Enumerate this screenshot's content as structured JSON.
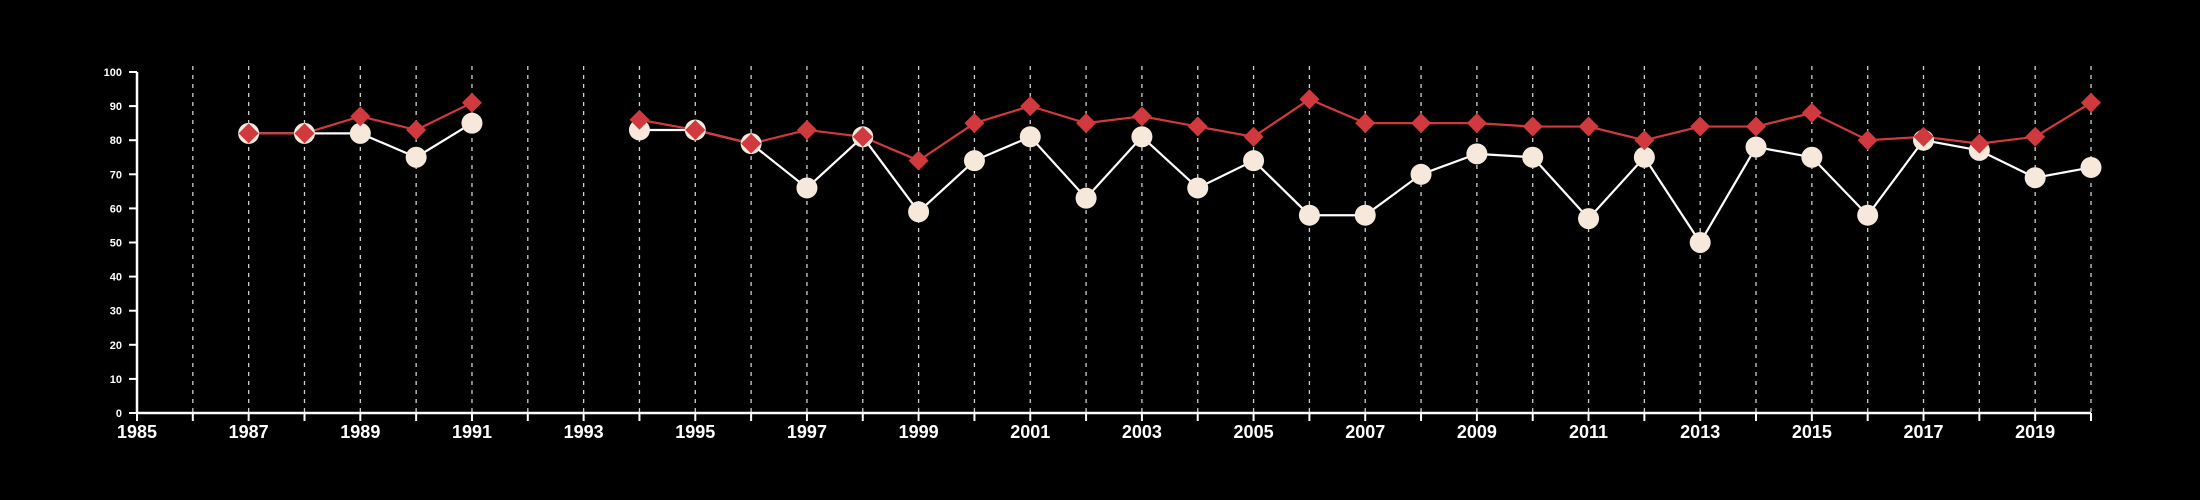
{
  "chart_data": {
    "type": "line",
    "title": "",
    "xlabel": "",
    "ylabel": "",
    "xlim": [
      1985,
      2020
    ],
    "ylim": [
      0,
      100
    ],
    "x_ticks": [
      1985,
      1987,
      1989,
      1991,
      1993,
      1995,
      1997,
      1999,
      2001,
      2003,
      2005,
      2007,
      2009,
      2011,
      2013,
      2015,
      2017,
      2019
    ],
    "y_ticks": [
      0,
      10,
      20,
      30,
      40,
      50,
      60,
      70,
      80,
      90,
      100
    ],
    "x_gridlines": "dashed vertical line every year",
    "legend": "none",
    "series": [
      {
        "marker": "diamond",
        "color": "#d03a3e",
        "points": [
          [
            1987,
            82
          ],
          [
            1988,
            82
          ],
          [
            1989,
            87
          ],
          [
            1990,
            83
          ],
          [
            1991,
            91
          ],
          [
            1994,
            86
          ],
          [
            1995,
            83
          ],
          [
            1996,
            79
          ],
          [
            1997,
            83
          ],
          [
            1998,
            81
          ],
          [
            1999,
            74
          ],
          [
            2000,
            85
          ],
          [
            2001,
            90
          ],
          [
            2002,
            85
          ],
          [
            2003,
            87
          ],
          [
            2004,
            84
          ],
          [
            2005,
            81
          ],
          [
            2006,
            92
          ],
          [
            2007,
            85
          ],
          [
            2008,
            85
          ],
          [
            2009,
            85
          ],
          [
            2010,
            84
          ],
          [
            2011,
            84
          ],
          [
            2012,
            80
          ],
          [
            2013,
            84
          ],
          [
            2014,
            84
          ],
          [
            2015,
            88
          ],
          [
            2016,
            80
          ],
          [
            2017,
            81
          ],
          [
            2018,
            79
          ],
          [
            2019,
            81
          ],
          [
            2020,
            91
          ]
        ]
      },
      {
        "marker": "circle",
        "color": "#f6e9dc",
        "points": [
          [
            1987,
            82
          ],
          [
            1988,
            82
          ],
          [
            1989,
            82
          ],
          [
            1990,
            75
          ],
          [
            1991,
            85
          ],
          [
            1994,
            83
          ],
          [
            1995,
            83
          ],
          [
            1996,
            79
          ],
          [
            1997,
            66
          ],
          [
            1998,
            81
          ],
          [
            1999,
            59
          ],
          [
            2000,
            74
          ],
          [
            2001,
            81
          ],
          [
            2002,
            63
          ],
          [
            2003,
            81
          ],
          [
            2004,
            66
          ],
          [
            2005,
            74
          ],
          [
            2006,
            58
          ],
          [
            2007,
            58
          ],
          [
            2008,
            70
          ],
          [
            2009,
            76
          ],
          [
            2010,
            75
          ],
          [
            2011,
            57
          ],
          [
            2012,
            75
          ],
          [
            2013,
            50
          ],
          [
            2014,
            78
          ],
          [
            2015,
            75
          ],
          [
            2016,
            58
          ],
          [
            2017,
            80
          ],
          [
            2018,
            77
          ],
          [
            2019,
            69
          ],
          [
            2020,
            72
          ]
        ]
      }
    ]
  }
}
